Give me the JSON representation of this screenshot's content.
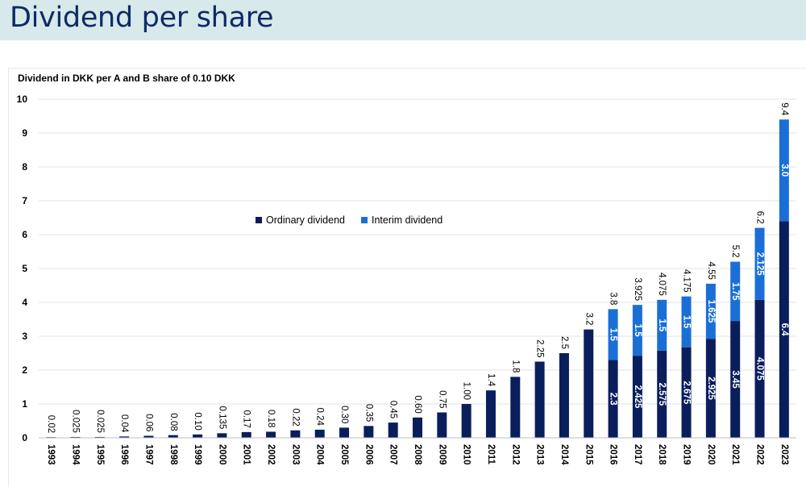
{
  "page": {
    "title": "Dividend per share"
  },
  "chart_data": {
    "type": "bar",
    "stacked": true,
    "title": "Dividend in DKK per A and B share of 0.10 DKK",
    "xlabel": "",
    "ylabel": "",
    "ylim": [
      0,
      10
    ],
    "yticks": [
      "0",
      "1",
      "2",
      "3",
      "4",
      "5",
      "6",
      "7",
      "8",
      "9",
      "10"
    ],
    "grid": true,
    "legend_position": "center",
    "categories": [
      "1993",
      "1994",
      "1995",
      "1996",
      "1997",
      "1998",
      "1999",
      "2000",
      "2001",
      "2002",
      "2003",
      "2004",
      "2005",
      "2006",
      "2007",
      "2008",
      "2009",
      "2010",
      "2011",
      "2012",
      "2013",
      "2014",
      "2015",
      "2016",
      "2017",
      "2018",
      "2019",
      "2020",
      "2021",
      "2022",
      "2023"
    ],
    "series": [
      {
        "name": "Ordinary dividend",
        "color": "#0a1e5c",
        "values": [
          0.02,
          0.025,
          0.025,
          0.04,
          0.06,
          0.08,
          0.1,
          0.135,
          0.17,
          0.18,
          0.22,
          0.24,
          0.3,
          0.35,
          0.45,
          0.6,
          0.75,
          1.0,
          1.4,
          1.8,
          2.25,
          2.5,
          3.2,
          2.3,
          2.425,
          2.575,
          2.675,
          2.925,
          3.45,
          4.075,
          6.4
        ],
        "labels": [
          null,
          null,
          null,
          null,
          null,
          null,
          null,
          null,
          null,
          null,
          null,
          null,
          null,
          null,
          null,
          null,
          null,
          null,
          null,
          null,
          null,
          null,
          null,
          "2.3",
          "2.425",
          "2.575",
          "2.675",
          "2.925",
          "3.45",
          "4.075",
          "6.4"
        ]
      },
      {
        "name": "Interim dividend",
        "color": "#1a6fd6",
        "values": [
          0,
          0,
          0,
          0,
          0,
          0,
          0,
          0,
          0,
          0,
          0,
          0,
          0,
          0,
          0,
          0,
          0,
          0,
          0,
          0,
          0,
          0,
          0,
          1.5,
          1.5,
          1.5,
          1.5,
          1.625,
          1.75,
          2.125,
          3.0
        ],
        "labels": [
          null,
          null,
          null,
          null,
          null,
          null,
          null,
          null,
          null,
          null,
          null,
          null,
          null,
          null,
          null,
          null,
          null,
          null,
          null,
          null,
          null,
          null,
          null,
          "1.5",
          "1.5",
          "1.5",
          "1.5",
          "1.625",
          "1.75",
          "2.125",
          "3.0"
        ]
      }
    ],
    "total_labels": [
      "0.02",
      "0.025",
      "0.025",
      "0.04",
      "0.06",
      "0.08",
      "0.10",
      "0.135",
      "0.17",
      "0.18",
      "0.22",
      "0.24",
      "0.30",
      "0.35",
      "0.45",
      "0.60",
      "0.75",
      "1.00",
      "1.4",
      "1.8",
      "2.25",
      "2.5",
      "3.2",
      "3.8",
      "3.925",
      "4.075",
      "4.175",
      "4.55",
      "5.2",
      "6.2",
      "9.4"
    ]
  }
}
